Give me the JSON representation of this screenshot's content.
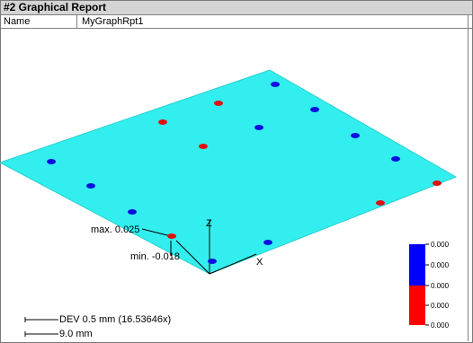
{
  "report": {
    "title": "#2  Graphical Report",
    "name_label": "Name",
    "name_value": "MyGraphRpt1"
  },
  "plot": {
    "plane_color": "#33eeee",
    "max_label": "max. 0.025",
    "min_label": "min. -0.018",
    "axis_x": "X",
    "axis_z": "Z",
    "dev_scale": "DEV 0.5 mm (16.53646x)",
    "length_scale": "9.0 mm",
    "point_colors": {
      "positive": "#e01010",
      "negative": "#0a10e0"
    }
  },
  "legend": {
    "colors": [
      "#0000ff",
      "#0000ff",
      "#ff0000",
      "#ff0000"
    ],
    "labels": [
      "0.000",
      "0.000",
      "0.000",
      "0.000",
      "0.000"
    ]
  }
}
